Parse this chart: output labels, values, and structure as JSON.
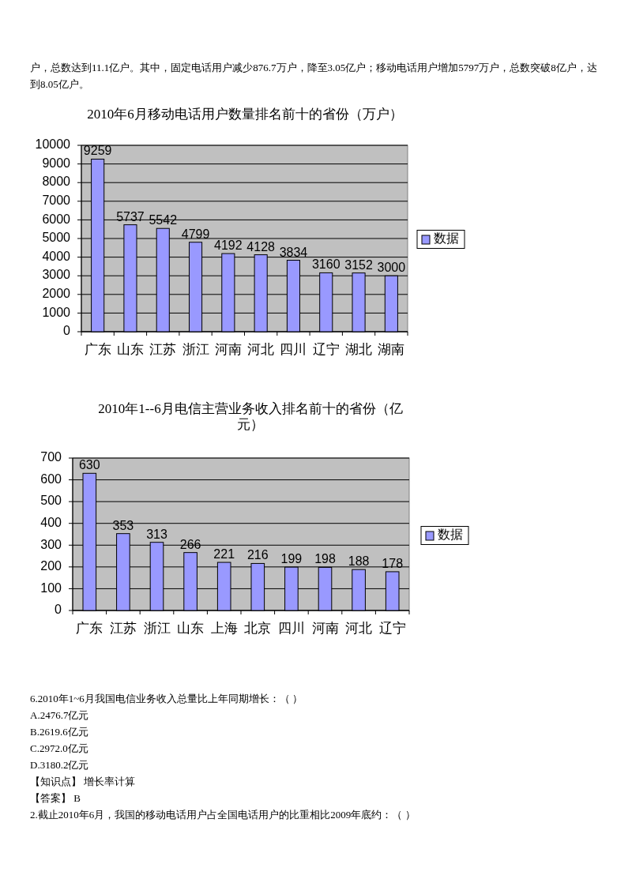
{
  "chart_data": [
    {
      "type": "bar",
      "title": "2010年6月移动电话用户数量排名前十的省份（万户）",
      "categories": [
        "广东",
        "山东",
        "江苏",
        "浙江",
        "河南",
        "河北",
        "四川",
        "辽宁",
        "湖北",
        "湖南"
      ],
      "series": [
        {
          "name": "数据",
          "color": "#9999ff",
          "values": [
            9259,
            5737,
            5542,
            4799,
            4192,
            4128,
            3834,
            3160,
            3152,
            3000
          ]
        }
      ],
      "ylim": [
        0,
        10000
      ],
      "yticks": [
        0,
        1000,
        2000,
        3000,
        4000,
        5000,
        6000,
        7000,
        8000,
        9000,
        10000
      ],
      "grid": "y",
      "legend": "right",
      "data_labels": true,
      "annotations": [
        "户，总数达到11.1亿户。其中，固定电话用户减少876.7万户，降至3.05亿户；移动电话用户增加5797万户，总数突破8亿户，达到8.05亿户。"
      ]
    },
    {
      "type": "bar",
      "title": "2010年1--6月电信主营业务收入排名前十的省份（亿元）",
      "categories": [
        "广东",
        "江苏",
        "浙江",
        "山东",
        "上海",
        "北京",
        "四川",
        "河南",
        "河北",
        "辽宁"
      ],
      "series": [
        {
          "name": "数据",
          "color": "#9999ff",
          "values": [
            630,
            353,
            313,
            266,
            221,
            216,
            199,
            198,
            188,
            178
          ]
        }
      ],
      "ylim": [
        0,
        700
      ],
      "yticks": [
        0,
        100,
        200,
        300,
        400,
        500,
        600,
        700
      ],
      "grid": "y",
      "legend": "right",
      "data_labels": true,
      "annotations": [
        "6.2010年1~6月我国电信业务收入总量比上年同期增长：（ ）",
        "A.2476.7亿元",
        "B.2619.6亿元",
        "C.2972.0亿元",
        "D.3180.2亿元",
        "【知识点】 增长率计算",
        "【答案】 B",
        "2.截止2010年6月，我国的移动电话用户占全国电话用户的比重相比2009年底约：（ ）"
      ]
    }
  ]
}
